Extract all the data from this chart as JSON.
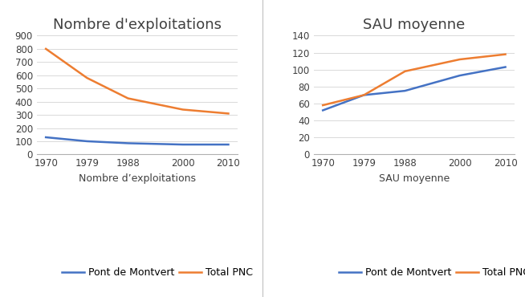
{
  "years": [
    1970,
    1979,
    1988,
    2000,
    2010
  ],
  "exploitations_montvert": [
    130,
    100,
    85,
    75,
    75
  ],
  "exploitations_pnc": [
    800,
    580,
    425,
    340,
    310
  ],
  "sau_montvert": [
    52,
    70,
    75,
    93,
    103
  ],
  "sau_pnc": [
    58,
    70,
    98,
    112,
    118
  ],
  "color_montvert": "#4472c4",
  "color_pnc": "#ed7d31",
  "title1": "Nombre d'exploitations",
  "title2": "SAU moyenne",
  "xlabel1": "Nombre d’exploitations",
  "xlabel2": "SAU moyenne",
  "legend_montvert": "Pont de Montvert",
  "legend_pnc": "Total PNC",
  "ylim1": [
    0,
    900
  ],
  "yticks1": [
    0,
    100,
    200,
    300,
    400,
    500,
    600,
    700,
    800,
    900
  ],
  "ylim2": [
    0,
    140
  ],
  "yticks2": [
    0,
    20,
    40,
    60,
    80,
    100,
    120,
    140
  ],
  "bg_color": "#ffffff",
  "grid_color": "#d9d9d9",
  "title_fontsize": 13,
  "label_fontsize": 9,
  "tick_fontsize": 8.5,
  "legend_fontsize": 9,
  "line_width": 1.8
}
